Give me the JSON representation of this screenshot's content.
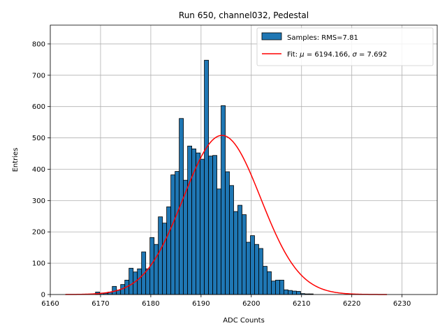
{
  "chart_data": {
    "type": "bar",
    "title": "Run 650, channel032, Pedestal",
    "xlabel": "ADC Counts",
    "ylabel": "Entries",
    "xlim": [
      6160,
      6237
    ],
    "ylim": [
      0,
      860
    ],
    "xticks": [
      6160,
      6170,
      6180,
      6190,
      6200,
      6210,
      6220,
      6230
    ],
    "yticks": [
      0,
      100,
      200,
      300,
      400,
      500,
      600,
      700,
      800
    ],
    "grid": true,
    "legend_position": "top-right",
    "colors": {
      "bars": "#1f77b4",
      "edge": "#000000",
      "fit": "#ff0000",
      "grid": "#b0b0b0"
    },
    "histogram": {
      "name": "Samples: RMS=7.81",
      "bin_width": 0.833,
      "bin_start": 6169,
      "values": [
        8,
        4,
        4,
        8,
        26,
        14,
        32,
        46,
        84,
        72,
        82,
        136,
        82,
        182,
        160,
        248,
        228,
        280,
        382,
        393,
        562,
        365,
        474,
        465,
        452,
        432,
        748,
        442,
        444,
        337,
        603,
        392,
        348,
        265,
        285,
        255,
        167,
        188,
        160,
        147,
        90,
        73,
        43,
        46,
        46,
        15,
        13,
        11,
        10,
        3,
        2,
        2
      ]
    },
    "fit": {
      "name_prefix": "Fit: ",
      "name_mu": "μ",
      "name_mid": " = 6194.166, ",
      "name_sigma": "σ",
      "name_suffix": " = 7.692",
      "mu": 6194.166,
      "sigma": 7.692,
      "amplitude": 508,
      "x_range": [
        6163,
        6227
      ]
    }
  }
}
